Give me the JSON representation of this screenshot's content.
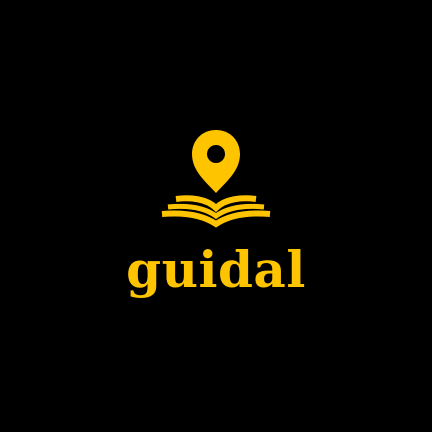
{
  "brand": {
    "wordmark": "guidal",
    "icon": "map-pin-on-open-book-icon",
    "accent_color": "#FFC400",
    "background_color": "#000000"
  }
}
